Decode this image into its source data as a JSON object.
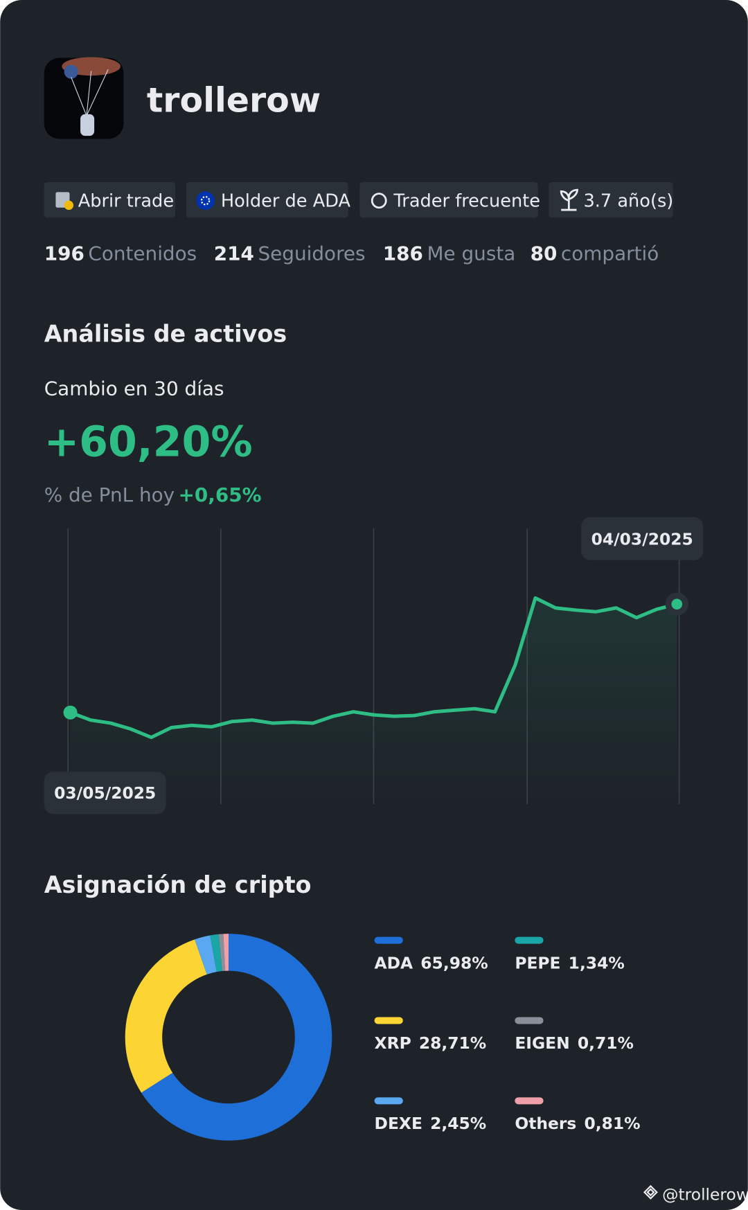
{
  "profile": {
    "username": "trollerow"
  },
  "badges": [
    "Abrir trade",
    "Holder de ADA",
    "Trader frecuente",
    "3.7 año(s)"
  ],
  "stats": [
    {
      "value": 196,
      "label": "Contenidos"
    },
    {
      "value": 214,
      "label": "Seguidores"
    },
    {
      "value": 186,
      "label": "Me gusta"
    },
    {
      "value": 80,
      "label": "compartió"
    }
  ],
  "analysis": {
    "title": "Análisis de activos",
    "change_label": "Cambio en 30 días",
    "change": "+60,20%",
    "pnl_label": "% de PnL hoy",
    "pnl": "+0,65%"
  },
  "allocation_title": "Asignación de cripto",
  "watermark": "@trollerow",
  "chart_data": [
    {
      "type": "line",
      "color": "#2ebd85",
      "categories": [
        "03/05/2025",
        null,
        null,
        null,
        null,
        null,
        null,
        null,
        null,
        null,
        null,
        null,
        null,
        null,
        null,
        null,
        null,
        null,
        null,
        null,
        null,
        null,
        null,
        null,
        null,
        null,
        null,
        null,
        null,
        null,
        "04/03/2025"
      ],
      "values": [
        0,
        -4.2,
        -5.9,
        -9.2,
        -13.8,
        -8.4,
        -7.1,
        -7.9,
        -5.0,
        -4.2,
        -5.9,
        -5.4,
        -5.9,
        -2.1,
        0.4,
        -1.3,
        -2.1,
        -1.7,
        0.4,
        1.3,
        2.1,
        0.4,
        26.3,
        63.6,
        58.1,
        56.9,
        56.0,
        58.1,
        52.7,
        57.3,
        60.2
      ],
      "ylim": [
        -50,
        100
      ]
    },
    {
      "type": "pie",
      "categories": [
        "ADA",
        "XRP",
        "DEXE",
        "PEPE",
        "EIGEN",
        "Others"
      ],
      "values": [
        65.98,
        28.71,
        2.45,
        1.34,
        0.71,
        0.81
      ],
      "value_labels": [
        "65,98%",
        "28,71%",
        "2,45%",
        "1,34%",
        "0,71%",
        "0,81%"
      ],
      "colors": [
        "#1f6fd8",
        "#fcd535",
        "#5aa9f0",
        "#1aa6a6",
        "#8a8f99",
        "#f0a0a8"
      ]
    }
  ]
}
